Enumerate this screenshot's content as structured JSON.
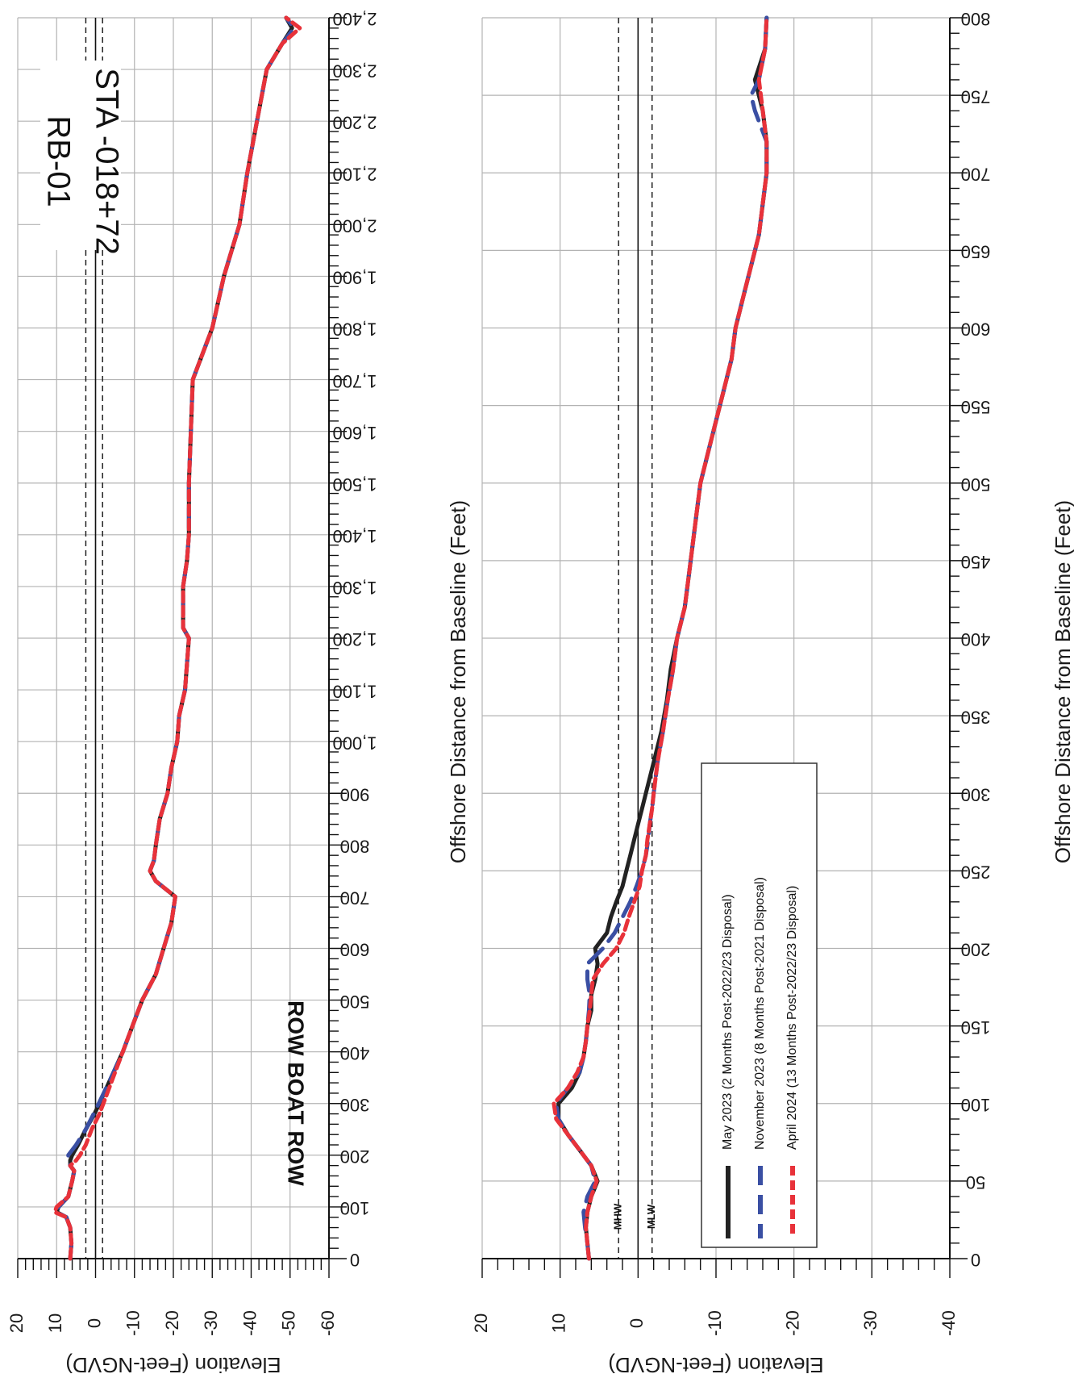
{
  "title": {
    "line1": "RB-01",
    "line2": "STA -018+72"
  },
  "subtitle": "ROW BOAT ROW",
  "colors": {
    "series0": "#222222",
    "series1": "#3a4fa3",
    "series2": "#e8323a",
    "grid": "#b3b3b3"
  },
  "legend": [
    {
      "label": "May 2023 (2 Months Post-2022/23 Disposal)"
    },
    {
      "label": "November 2023 (8 Months Post-2021 Disposal)"
    },
    {
      "label": "April 2024 (13 Months Post-2022/23 Disposal)"
    }
  ],
  "reference_lines": {
    "mhw_label": "MHW",
    "mlw_label": "MLW",
    "mhw": 2.5,
    "mlw": -1.8
  },
  "chart_data": [
    {
      "type": "line",
      "xlabel": "Offshore Distance from Baseline (Feet)",
      "ylabel": "Elevation (Feet-NGVD)",
      "xlim": [
        0,
        2400
      ],
      "ylim": [
        -60,
        20
      ],
      "xticks": [
        0,
        100,
        200,
        300,
        400,
        500,
        600,
        700,
        800,
        900,
        1000,
        1100,
        1200,
        1300,
        1400,
        1500,
        1600,
        1700,
        1800,
        1900,
        2000,
        2100,
        2200,
        2300,
        2400
      ],
      "xtick_labels": [
        "0",
        "100",
        "200",
        "300",
        "400",
        "500",
        "600",
        "700",
        "800",
        "900",
        "1,000",
        "1,100",
        "1,200",
        "1,300",
        "1,400",
        "1,500",
        "1,600",
        "1,700",
        "1,800",
        "1,900",
        "2,000",
        "2,100",
        "2,200",
        "2,300",
        "2,400"
      ],
      "yticks": [
        20,
        10,
        0,
        -10,
        -20,
        -30,
        -40,
        -50,
        -60
      ],
      "ytick_labels": [
        "20",
        "10",
        "0",
        "-10",
        "-20",
        "-30",
        "-40",
        "-50",
        "-60"
      ],
      "series": [
        {
          "x": [
            0,
            30,
            60,
            80,
            90,
            100,
            120,
            150,
            170,
            180,
            190,
            200,
            220,
            250,
            280,
            300,
            350,
            400,
            450,
            500,
            550,
            600,
            650,
            700,
            730,
            750,
            770,
            800,
            850,
            900,
            950,
            1000,
            1050,
            1100,
            1150,
            1200,
            1220,
            1250,
            1300,
            1350,
            1400,
            1500,
            1600,
            1700,
            1800,
            1900,
            2000,
            2100,
            2200,
            2300,
            2350,
            2380,
            2400
          ],
          "y": [
            6.5,
            6.2,
            6.5,
            7.5,
            10,
            9.5,
            7,
            6,
            5.5,
            6.5,
            6.5,
            6,
            4.5,
            2.5,
            0.3,
            -1,
            -4,
            -7,
            -9.5,
            -12,
            -15.5,
            -17.5,
            -19.5,
            -20.5,
            -15.5,
            -14,
            -15,
            -15.5,
            -16.5,
            -18.5,
            -19.5,
            -21,
            -21.5,
            -23,
            -23.5,
            -24,
            -22.5,
            -22.5,
            -22.5,
            -23.5,
            -24,
            -24,
            -24.5,
            -25,
            -30,
            -33,
            -37,
            -39,
            -41.5,
            -44,
            -48,
            -50.5,
            -49
          ]
        },
        {
          "x": [
            0,
            30,
            60,
            80,
            90,
            100,
            120,
            150,
            170,
            180,
            190,
            200,
            220,
            250,
            280,
            300,
            350,
            400,
            450,
            500,
            550,
            600,
            650,
            700,
            730,
            750,
            770,
            800,
            850,
            900,
            950,
            1000,
            1050,
            1100,
            1150,
            1200,
            1220,
            1250,
            1300,
            1350,
            1400,
            1500,
            1600,
            1700,
            1800,
            1900,
            2000,
            2100,
            2200,
            2300,
            2350,
            2380,
            2400
          ],
          "y": [
            6.5,
            6.2,
            6.5,
            7.5,
            10,
            9.5,
            7,
            6,
            5.5,
            6.5,
            7,
            7,
            5,
            2.5,
            0.5,
            -0.8,
            -4,
            -7,
            -9.5,
            -12,
            -15.5,
            -17.5,
            -19.5,
            -20.5,
            -15.5,
            -14,
            -15,
            -15.5,
            -16.5,
            -18.5,
            -19.5,
            -21,
            -21.5,
            -23,
            -23.5,
            -24,
            -22.5,
            -22.5,
            -22.5,
            -23.5,
            -24,
            -24,
            -24.5,
            -25,
            -30,
            -33,
            -37,
            -39,
            -41.5,
            -44,
            -48,
            -51,
            -49
          ]
        },
        {
          "x": [
            0,
            30,
            60,
            80,
            90,
            100,
            120,
            150,
            170,
            180,
            190,
            200,
            220,
            250,
            280,
            300,
            350,
            400,
            450,
            500,
            550,
            600,
            650,
            700,
            730,
            750,
            770,
            800,
            850,
            900,
            950,
            1000,
            1050,
            1100,
            1150,
            1200,
            1220,
            1250,
            1300,
            1350,
            1400,
            1500,
            1600,
            1700,
            1800,
            1900,
            2000,
            2100,
            2200,
            2300,
            2350,
            2380,
            2400
          ],
          "y": [
            6.5,
            6.2,
            6.5,
            7.5,
            10.5,
            10,
            7,
            6,
            5.5,
            6.5,
            5,
            4,
            2.5,
            1,
            -1,
            -2,
            -4.5,
            -7,
            -9.5,
            -12,
            -15.5,
            -17.5,
            -19.5,
            -20.5,
            -15.5,
            -14,
            -15,
            -15.5,
            -16.5,
            -18.5,
            -19.5,
            -21,
            -21.5,
            -23,
            -23.5,
            -24,
            -22.5,
            -22.5,
            -22.5,
            -23.5,
            -24,
            -24,
            -24.5,
            -25,
            -30,
            -33,
            -37,
            -39,
            -41.5,
            -44,
            -48,
            -52.5,
            -49
          ]
        }
      ]
    },
    {
      "type": "line",
      "xlabel": "Offshore Distance from Baseline (Feet)",
      "ylabel": "Elevation (Feet-NGVD)",
      "xlim": [
        0,
        800
      ],
      "ylim": [
        -40,
        20
      ],
      "xticks": [
        0,
        50,
        100,
        150,
        200,
        250,
        300,
        350,
        400,
        450,
        500,
        550,
        600,
        650,
        700,
        750,
        800
      ],
      "xtick_labels": [
        "0",
        "50",
        "100",
        "150",
        "200",
        "250",
        "300",
        "350",
        "400",
        "450",
        "500",
        "550",
        "600",
        "650",
        "700",
        "750",
        "800"
      ],
      "yticks": [
        20,
        10,
        0,
        -10,
        -20,
        -30,
        -40
      ],
      "ytick_labels": [
        "20",
        "10",
        "0",
        "-10",
        "-20",
        "-30",
        "-40"
      ],
      "series": [
        {
          "x": [
            0,
            10,
            20,
            30,
            40,
            50,
            60,
            70,
            80,
            90,
            100,
            110,
            120,
            130,
            140,
            150,
            160,
            170,
            180,
            190,
            200,
            210,
            220,
            230,
            240,
            250,
            260,
            270,
            280,
            290,
            300,
            320,
            340,
            360,
            380,
            400,
            420,
            440,
            460,
            480,
            500,
            520,
            540,
            560,
            580,
            600,
            620,
            640,
            660,
            680,
            700,
            720,
            740,
            760,
            780,
            800
          ],
          "y": [
            6.3,
            6.5,
            6.7,
            6.5,
            6,
            5.2,
            6,
            7.5,
            9,
            10.2,
            10.2,
            8.5,
            7.5,
            7,
            6.7,
            6.5,
            6,
            6,
            5.5,
            5.2,
            5.5,
            4,
            3.5,
            2.8,
            2,
            1.5,
            1,
            0.5,
            0,
            -0.5,
            -1,
            -2,
            -3,
            -3.7,
            -4.2,
            -5,
            -6,
            -6.5,
            -7,
            -7.5,
            -8,
            -9,
            -10,
            -11,
            -12,
            -12.5,
            -13.5,
            -14.5,
            -15.5,
            -16,
            -16.5,
            -16.5,
            -16,
            -15,
            -16.3,
            -16.5
          ]
        },
        {
          "x": [
            0,
            10,
            20,
            30,
            40,
            50,
            60,
            70,
            80,
            90,
            100,
            110,
            120,
            130,
            140,
            150,
            160,
            170,
            180,
            190,
            200,
            210,
            220,
            230,
            240,
            250,
            260,
            270,
            280,
            290,
            300,
            320,
            340,
            360,
            380,
            400,
            420,
            440,
            460,
            480,
            500,
            520,
            540,
            560,
            580,
            600,
            620,
            640,
            660,
            680,
            700,
            720,
            740,
            750,
            760,
            780,
            800
          ],
          "y": [
            6.3,
            6.5,
            6.8,
            7,
            6.5,
            5.5,
            6,
            7.5,
            9,
            10.2,
            10.5,
            9,
            7.5,
            7,
            6.7,
            6.5,
            6.3,
            6.2,
            6.5,
            6.5,
            4.5,
            3,
            2,
            1,
            0.2,
            -0.5,
            -1,
            -1.3,
            -1.5,
            -1.8,
            -2,
            -2.5,
            -3.2,
            -3.8,
            -4.5,
            -5,
            -6,
            -6.5,
            -7,
            -7.5,
            -8,
            -9,
            -10,
            -11,
            -12,
            -12.5,
            -13.5,
            -14.5,
            -15.5,
            -16,
            -16.5,
            -16.5,
            -15,
            -14.5,
            -15.5,
            -16.3,
            -16.5
          ]
        },
        {
          "x": [
            0,
            10,
            20,
            30,
            40,
            50,
            60,
            70,
            80,
            90,
            100,
            110,
            120,
            130,
            140,
            150,
            160,
            170,
            180,
            190,
            200,
            210,
            220,
            230,
            240,
            250,
            260,
            270,
            280,
            290,
            300,
            320,
            340,
            360,
            380,
            400,
            420,
            440,
            460,
            480,
            500,
            520,
            540,
            560,
            580,
            600,
            620,
            640,
            660,
            680,
            700,
            720,
            740,
            760,
            780,
            800
          ],
          "y": [
            6.3,
            6.5,
            6.7,
            6.5,
            6,
            5.3,
            6,
            7.5,
            9,
            10.5,
            10.8,
            9,
            7.8,
            7,
            6.7,
            6.5,
            6.2,
            6,
            5.8,
            4.5,
            2.8,
            1.8,
            1.2,
            0.5,
            -0.2,
            -0.5,
            -1,
            -1.2,
            -1.5,
            -1.8,
            -2,
            -2.5,
            -3.2,
            -3.8,
            -4.5,
            -5,
            -6,
            -6.5,
            -7,
            -7.5,
            -8,
            -9,
            -10,
            -11,
            -12,
            -12.5,
            -13.5,
            -14.5,
            -15.5,
            -16,
            -16.5,
            -16.5,
            -16,
            -15.5,
            -16.3,
            -16.5
          ]
        }
      ]
    }
  ]
}
